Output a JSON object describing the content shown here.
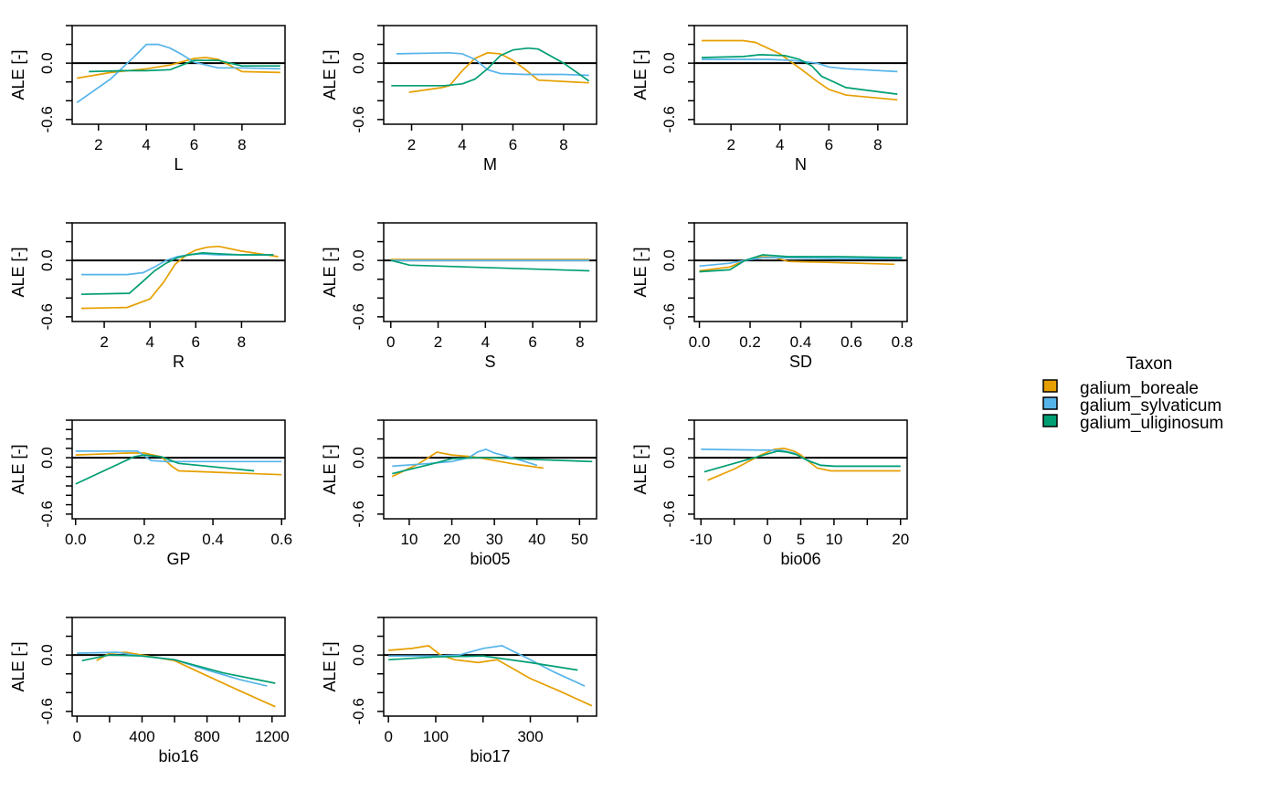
{
  "legend": {
    "title": "Taxon",
    "placement": "right",
    "entries": [
      {
        "name": "galium_boreale",
        "color": "#E69F00"
      },
      {
        "name": "galium_sylvaticum",
        "color": "#56B4E9"
      },
      {
        "name": "galium_uliginosum",
        "color": "#009E73"
      }
    ]
  },
  "chart_data": [
    {
      "type": "line",
      "xlabel": "L",
      "ylabel": "ALE [-]",
      "xlim": [
        0.9,
        9.8
      ],
      "ylim": [
        -0.65,
        0.4
      ],
      "xticks": [
        "2",
        "4",
        "6",
        "8"
      ],
      "xtick_values": [
        2,
        4,
        6,
        8
      ],
      "yticks": [
        "-0.6",
        "0.0"
      ],
      "ytick_values": [
        -0.6,
        -0.4,
        -0.2,
        0.0,
        0.2,
        0.4
      ],
      "grid": false,
      "series": [
        {
          "name": "galium_boreale",
          "x": [
            1.1,
            2.5,
            4,
            5,
            6,
            6.5,
            7,
            8,
            9.6
          ],
          "y": [
            -0.16,
            -0.1,
            -0.06,
            -0.02,
            0.05,
            0.06,
            0.04,
            -0.09,
            -0.1
          ]
        },
        {
          "name": "galium_sylvaticum",
          "x": [
            1.1,
            2.5,
            3.5,
            4,
            4.5,
            5,
            5.5,
            6,
            7,
            8,
            9.6
          ],
          "y": [
            -0.42,
            -0.17,
            0.07,
            0.2,
            0.2,
            0.16,
            0.09,
            0.01,
            -0.05,
            -0.05,
            -0.06
          ]
        },
        {
          "name": "galium_uliginosum",
          "x": [
            1.6,
            3,
            4,
            5,
            6,
            6.5,
            7,
            8,
            9.6
          ],
          "y": [
            -0.09,
            -0.08,
            -0.08,
            -0.07,
            0.03,
            0.03,
            0.03,
            -0.03,
            -0.03
          ]
        }
      ]
    },
    {
      "type": "line",
      "xlabel": "M",
      "ylabel": "ALE [-]",
      "xlim": [
        0.9,
        9.3
      ],
      "ylim": [
        -0.65,
        0.4
      ],
      "xticks": [
        "2",
        "4",
        "6",
        "8"
      ],
      "xtick_values": [
        2,
        4,
        6,
        8
      ],
      "yticks": [
        "-0.6",
        "0.0"
      ],
      "ytick_values": [
        -0.6,
        -0.4,
        -0.2,
        0.0,
        0.2,
        0.4
      ],
      "grid": false,
      "series": [
        {
          "name": "galium_boreale",
          "x": [
            1.9,
            3.2,
            3.5,
            4,
            4.5,
            5,
            5.5,
            6,
            6.5,
            7,
            9
          ],
          "y": [
            -0.31,
            -0.26,
            -0.24,
            -0.08,
            0.05,
            0.11,
            0.1,
            0.03,
            -0.07,
            -0.18,
            -0.21
          ]
        },
        {
          "name": "galium_sylvaticum",
          "x": [
            1.4,
            3.5,
            4,
            4.5,
            5,
            5.5,
            6.5,
            8,
            9
          ],
          "y": [
            0.1,
            0.11,
            0.1,
            0.04,
            -0.07,
            -0.11,
            -0.12,
            -0.12,
            -0.13
          ]
        },
        {
          "name": "galium_uliginosum",
          "x": [
            1.2,
            3.3,
            4,
            4.5,
            5,
            5.5,
            6,
            6.6,
            7,
            8,
            9
          ],
          "y": [
            -0.24,
            -0.24,
            -0.22,
            -0.17,
            -0.06,
            0.08,
            0.14,
            0.16,
            0.15,
            0.0,
            -0.19
          ]
        }
      ]
    },
    {
      "type": "line",
      "xlabel": "N",
      "ylabel": "ALE [-]",
      "xlim": [
        0.5,
        9.2
      ],
      "ylim": [
        -0.65,
        0.4
      ],
      "xticks": [
        "2",
        "4",
        "6",
        "8"
      ],
      "xtick_values": [
        2,
        4,
        6,
        8
      ],
      "yticks": [
        "-0.6",
        "0.0"
      ],
      "ytick_values": [
        -0.6,
        -0.4,
        -0.2,
        0.0,
        0.2,
        0.4
      ],
      "grid": false,
      "series": [
        {
          "name": "galium_boreale",
          "x": [
            0.8,
            2.5,
            3,
            4,
            5,
            5.5,
            6,
            6.7,
            8.8
          ],
          "y": [
            0.24,
            0.24,
            0.22,
            0.1,
            -0.09,
            -0.19,
            -0.28,
            -0.34,
            -0.39
          ]
        },
        {
          "name": "galium_sylvaticum",
          "x": [
            0.8,
            2,
            3.5,
            4.5,
            5.5,
            6,
            6.7,
            8.8
          ],
          "y": [
            0.04,
            0.04,
            0.04,
            0.03,
            0.0,
            -0.04,
            -0.06,
            -0.09
          ]
        },
        {
          "name": "galium_uliginosum",
          "x": [
            0.8,
            2.5,
            3.2,
            4.2,
            4.8,
            5.3,
            5.7,
            6.7,
            8.8
          ],
          "y": [
            0.06,
            0.07,
            0.09,
            0.08,
            0.04,
            -0.03,
            -0.14,
            -0.26,
            -0.33
          ]
        }
      ]
    },
    {
      "type": "line",
      "xlabel": "R",
      "ylabel": "ALE [-]",
      "xlim": [
        0.6,
        9.9
      ],
      "ylim": [
        -0.65,
        0.4
      ],
      "xticks": [
        "2",
        "4",
        "6",
        "8"
      ],
      "xtick_values": [
        2,
        4,
        6,
        8
      ],
      "yticks": [
        "-0.6",
        "0.0"
      ],
      "ytick_values": [
        -0.6,
        -0.4,
        -0.2,
        0.0,
        0.2,
        0.4
      ],
      "grid": false,
      "series": [
        {
          "name": "galium_boreale",
          "x": [
            1,
            3,
            4,
            4.6,
            5.1,
            5.6,
            6,
            6.5,
            7,
            8,
            9.6
          ],
          "y": [
            -0.51,
            -0.5,
            -0.41,
            -0.23,
            -0.04,
            0.06,
            0.11,
            0.14,
            0.15,
            0.1,
            0.04
          ]
        },
        {
          "name": "galium_sylvaticum",
          "x": [
            1,
            3,
            3.7,
            4.2,
            4.7,
            5.2,
            5.7,
            6.2,
            7,
            8,
            9.4
          ],
          "y": [
            -0.15,
            -0.15,
            -0.13,
            -0.07,
            0.0,
            0.04,
            0.06,
            0.07,
            0.06,
            0.06,
            0.06
          ]
        },
        {
          "name": "galium_uliginosum",
          "x": [
            1,
            3.1,
            3.7,
            4.2,
            4.7,
            5.2,
            5.7,
            6.3,
            7,
            8,
            9.4
          ],
          "y": [
            -0.36,
            -0.35,
            -0.22,
            -0.11,
            -0.03,
            0.03,
            0.06,
            0.08,
            0.07,
            0.06,
            0.06
          ]
        }
      ]
    },
    {
      "type": "line",
      "xlabel": "S",
      "ylabel": "ALE [-]",
      "xlim": [
        -0.3,
        8.7
      ],
      "ylim": [
        -0.65,
        0.4
      ],
      "xticks": [
        "0",
        "2",
        "4",
        "6",
        "8"
      ],
      "xtick_values": [
        0,
        2,
        4,
        6,
        8
      ],
      "yticks": [
        "-0.6",
        "0.0"
      ],
      "ytick_values": [
        -0.6,
        -0.4,
        -0.2,
        0.0,
        0.2,
        0.4
      ],
      "grid": false,
      "series": [
        {
          "name": "galium_boreale",
          "x": [
            0,
            8.4
          ],
          "y": [
            0.01,
            0.01
          ]
        },
        {
          "name": "galium_sylvaticum",
          "x": [
            0,
            8.4
          ],
          "y": [
            0.0,
            0.0
          ]
        },
        {
          "name": "galium_uliginosum",
          "x": [
            0,
            0.8,
            8.4
          ],
          "y": [
            0.0,
            -0.05,
            -0.11
          ]
        }
      ]
    },
    {
      "type": "line",
      "xlabel": "SD",
      "ylabel": "ALE [-]",
      "xlim": [
        -0.02,
        0.82
      ],
      "ylim": [
        -0.65,
        0.4
      ],
      "xticks": [
        "0.0",
        "0.2",
        "0.4",
        "0.6",
        "0.8"
      ],
      "xtick_values": [
        0,
        0.2,
        0.4,
        0.6,
        0.8
      ],
      "yticks": [
        "-0.6",
        "0.0"
      ],
      "ytick_values": [
        -0.6,
        -0.4,
        -0.2,
        0.0,
        0.2,
        0.4
      ],
      "grid": false,
      "series": [
        {
          "name": "galium_boreale",
          "x": [
            0,
            0.12,
            0.18,
            0.25,
            0.3,
            0.35,
            0.5,
            0.77
          ],
          "y": [
            -0.11,
            -0.07,
            0.0,
            0.04,
            0.03,
            -0.01,
            -0.02,
            -0.04
          ]
        },
        {
          "name": "galium_sylvaticum",
          "x": [
            0,
            0.12,
            0.18,
            0.25,
            0.35,
            0.55,
            0.8
          ],
          "y": [
            -0.06,
            -0.03,
            0.0,
            0.03,
            0.03,
            0.02,
            0.02
          ]
        },
        {
          "name": "galium_uliginosum",
          "x": [
            0,
            0.12,
            0.18,
            0.25,
            0.3,
            0.35,
            0.55,
            0.8
          ],
          "y": [
            -0.12,
            -0.1,
            0.0,
            0.06,
            0.05,
            0.04,
            0.04,
            0.03
          ]
        }
      ]
    },
    {
      "type": "line",
      "xlabel": "GP",
      "ylabel": "ALE [-]",
      "xlim": [
        -0.01,
        0.61
      ],
      "ylim": [
        -0.65,
        0.4
      ],
      "xticks": [
        "0.0",
        "0.2",
        "0.4",
        "0.6"
      ],
      "xtick_values": [
        0,
        0.2,
        0.4,
        0.6
      ],
      "yticks": [
        "-0.6",
        "0.0"
      ],
      "ytick_values": [
        -0.6,
        -0.5,
        -0.4,
        -0.3,
        -0.2,
        -0.1,
        0.0,
        0.1,
        0.2,
        0.3,
        0.4
      ],
      "grid": false,
      "series": [
        {
          "name": "galium_boreale",
          "x": [
            0,
            0.15,
            0.2,
            0.25,
            0.28,
            0.3,
            0.6
          ],
          "y": [
            0.03,
            0.05,
            0.05,
            0.01,
            -0.09,
            -0.14,
            -0.18
          ]
        },
        {
          "name": "galium_sylvaticum",
          "x": [
            0,
            0.18,
            0.22,
            0.26,
            0.3,
            0.6
          ],
          "y": [
            0.07,
            0.07,
            -0.03,
            -0.04,
            -0.04,
            -0.04
          ]
        },
        {
          "name": "galium_uliginosum",
          "x": [
            0,
            0.17,
            0.2,
            0.25,
            0.3,
            0.52
          ],
          "y": [
            -0.28,
            0.01,
            0.03,
            0.01,
            -0.06,
            -0.14
          ]
        }
      ]
    },
    {
      "type": "line",
      "xlabel": "bio05",
      "ylabel": "ALE [-]",
      "xlim": [
        4,
        54
      ],
      "ylim": [
        -0.65,
        0.4
      ],
      "xticks": [
        "10",
        "20",
        "30",
        "40",
        "50"
      ],
      "xtick_values": [
        10,
        20,
        30,
        40,
        50
      ],
      "yticks": [
        "-0.6",
        "0.0"
      ],
      "ytick_values": [
        -0.6,
        -0.4,
        -0.2,
        0.0,
        0.2,
        0.4
      ],
      "grid": false,
      "series": [
        {
          "name": "galium_boreale",
          "x": [
            6,
            12,
            16.5,
            20,
            25,
            30,
            35,
            41.5
          ],
          "y": [
            -0.2,
            -0.07,
            0.06,
            0.03,
            0.01,
            -0.03,
            -0.07,
            -0.11
          ]
        },
        {
          "name": "galium_sylvaticum",
          "x": [
            6,
            15,
            20,
            24,
            26,
            28,
            30,
            35,
            40
          ],
          "y": [
            -0.09,
            -0.06,
            -0.04,
            0.0,
            0.06,
            0.09,
            0.05,
            -0.01,
            -0.08
          ]
        },
        {
          "name": "galium_uliginosum",
          "x": [
            6,
            15,
            20,
            25,
            30,
            40,
            53
          ],
          "y": [
            -0.17,
            -0.07,
            -0.01,
            0.0,
            0.0,
            -0.02,
            -0.04
          ]
        }
      ]
    },
    {
      "type": "line",
      "xlabel": "bio06",
      "ylabel": "ALE [-]",
      "xlim": [
        -11,
        21
      ],
      "ylim": [
        -0.65,
        0.4
      ],
      "xticks": [
        "-10",
        "0",
        "5",
        "10",
        "20"
      ],
      "xtick_values": [
        -10,
        -5,
        0,
        5,
        10,
        15,
        20
      ],
      "yticks": [
        "-0.6",
        "0.0"
      ],
      "ytick_values": [
        -0.6,
        -0.4,
        -0.2,
        0.0,
        0.2,
        0.4
      ],
      "grid": false,
      "series": [
        {
          "name": "galium_boreale",
          "x": [
            -9,
            -5,
            -1,
            1,
            2.5,
            4,
            5,
            6,
            7.5,
            9.5,
            20
          ],
          "y": [
            -0.24,
            -0.12,
            0.03,
            0.09,
            0.1,
            0.07,
            0.03,
            -0.03,
            -0.11,
            -0.14,
            -0.14
          ]
        },
        {
          "name": "galium_sylvaticum",
          "x": [
            -10,
            0,
            2,
            4,
            5,
            6,
            8,
            10,
            20
          ],
          "y": [
            0.09,
            0.08,
            0.08,
            0.05,
            0.01,
            -0.03,
            -0.08,
            -0.09,
            -0.09
          ]
        },
        {
          "name": "galium_uliginosum",
          "x": [
            -9.5,
            -5,
            -1,
            1.5,
            3,
            4.5,
            5.5,
            6.5,
            8,
            10,
            20
          ],
          "y": [
            -0.15,
            -0.06,
            0.02,
            0.07,
            0.06,
            0.03,
            -0.01,
            -0.04,
            -0.08,
            -0.09,
            -0.09
          ]
        }
      ]
    },
    {
      "type": "line",
      "xlabel": "bio16",
      "ylabel": "ALE [-]",
      "xlim": [
        -30,
        1280
      ],
      "ylim": [
        -0.65,
        0.4
      ],
      "xticks": [
        "0",
        "400",
        "800",
        "1200"
      ],
      "xtick_values": [
        0,
        200,
        400,
        600,
        800,
        1000,
        1200
      ],
      "yticks": [
        "-0.6",
        "0.0"
      ],
      "ytick_values": [
        -0.6,
        -0.4,
        -0.2,
        0.0,
        0.2,
        0.4
      ],
      "grid": false,
      "series": [
        {
          "name": "galium_boreale",
          "x": [
            120,
            200,
            300,
            600,
            800,
            1000,
            1220
          ],
          "y": [
            -0.06,
            0.02,
            0.03,
            -0.06,
            -0.22,
            -0.38,
            -0.55
          ]
        },
        {
          "name": "galium_sylvaticum",
          "x": [
            0,
            250,
            350,
            600,
            800,
            1000,
            1170
          ],
          "y": [
            0.02,
            0.03,
            0.0,
            -0.05,
            -0.16,
            -0.26,
            -0.33
          ]
        },
        {
          "name": "galium_uliginosum",
          "x": [
            30,
            200,
            400,
            600,
            900,
            1220
          ],
          "y": [
            -0.06,
            0.0,
            -0.01,
            -0.05,
            -0.19,
            -0.3
          ]
        }
      ]
    },
    {
      "type": "line",
      "xlabel": "bio17",
      "ylabel": "ALE [-]",
      "xlim": [
        -10,
        440
      ],
      "ylim": [
        -0.65,
        0.4
      ],
      "xticks": [
        "0",
        "100",
        "300"
      ],
      "xtick_values": [
        0,
        100,
        200,
        300,
        400
      ],
      "yticks": [
        "-0.6",
        "0.0"
      ],
      "ytick_values": [
        -0.6,
        -0.4,
        -0.2,
        0.0,
        0.2,
        0.4
      ],
      "grid": false,
      "series": [
        {
          "name": "galium_boreale",
          "x": [
            0,
            50,
            85,
            110,
            140,
            190,
            230,
            300,
            360,
            430
          ],
          "y": [
            0.05,
            0.07,
            0.1,
            0.0,
            -0.05,
            -0.08,
            -0.05,
            -0.25,
            -0.38,
            -0.54
          ]
        },
        {
          "name": "galium_sylvaticum",
          "x": [
            0,
            100,
            150,
            200,
            240,
            300,
            350,
            415
          ],
          "y": [
            -0.01,
            -0.01,
            0.0,
            0.07,
            0.1,
            -0.05,
            -0.18,
            -0.33
          ]
        },
        {
          "name": "galium_uliginosum",
          "x": [
            0,
            100,
            200,
            300,
            400
          ],
          "y": [
            -0.05,
            -0.02,
            -0.01,
            -0.08,
            -0.16
          ]
        }
      ]
    }
  ]
}
